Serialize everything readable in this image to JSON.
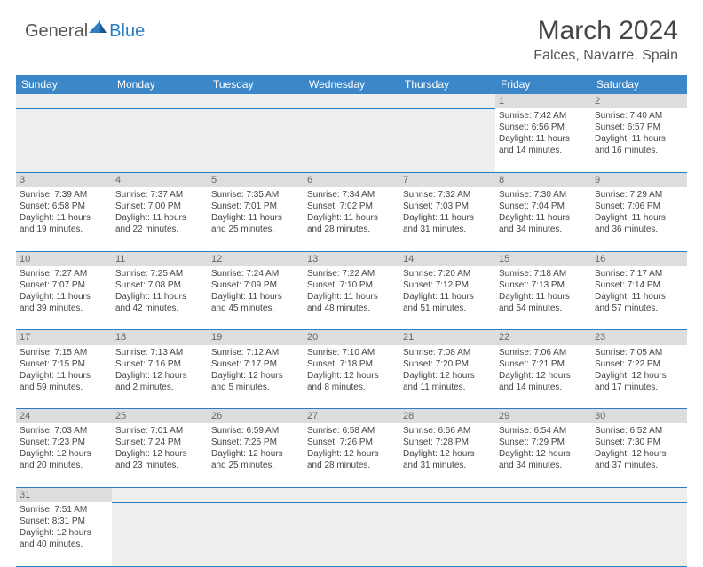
{
  "logo": {
    "text1": "General",
    "text2": "Blue"
  },
  "title": "March 2024",
  "location": "Falces, Navarre, Spain",
  "colors": {
    "header_bg": "#3b87c8",
    "header_text": "#ffffff",
    "daynum_bg": "#dddddd",
    "blank_bg": "#eeeeee",
    "border": "#2b7dc4",
    "text": "#444444"
  },
  "weekdays": [
    "Sunday",
    "Monday",
    "Tuesday",
    "Wednesday",
    "Thursday",
    "Friday",
    "Saturday"
  ],
  "weeks": [
    [
      null,
      null,
      null,
      null,
      null,
      {
        "n": "1",
        "sr": "7:42 AM",
        "ss": "6:56 PM",
        "dl1": "11 hours",
        "dl2": "and 14 minutes."
      },
      {
        "n": "2",
        "sr": "7:40 AM",
        "ss": "6:57 PM",
        "dl1": "11 hours",
        "dl2": "and 16 minutes."
      }
    ],
    [
      {
        "n": "3",
        "sr": "7:39 AM",
        "ss": "6:58 PM",
        "dl1": "11 hours",
        "dl2": "and 19 minutes."
      },
      {
        "n": "4",
        "sr": "7:37 AM",
        "ss": "7:00 PM",
        "dl1": "11 hours",
        "dl2": "and 22 minutes."
      },
      {
        "n": "5",
        "sr": "7:35 AM",
        "ss": "7:01 PM",
        "dl1": "11 hours",
        "dl2": "and 25 minutes."
      },
      {
        "n": "6",
        "sr": "7:34 AM",
        "ss": "7:02 PM",
        "dl1": "11 hours",
        "dl2": "and 28 minutes."
      },
      {
        "n": "7",
        "sr": "7:32 AM",
        "ss": "7:03 PM",
        "dl1": "11 hours",
        "dl2": "and 31 minutes."
      },
      {
        "n": "8",
        "sr": "7:30 AM",
        "ss": "7:04 PM",
        "dl1": "11 hours",
        "dl2": "and 34 minutes."
      },
      {
        "n": "9",
        "sr": "7:29 AM",
        "ss": "7:06 PM",
        "dl1": "11 hours",
        "dl2": "and 36 minutes."
      }
    ],
    [
      {
        "n": "10",
        "sr": "7:27 AM",
        "ss": "7:07 PM",
        "dl1": "11 hours",
        "dl2": "and 39 minutes."
      },
      {
        "n": "11",
        "sr": "7:25 AM",
        "ss": "7:08 PM",
        "dl1": "11 hours",
        "dl2": "and 42 minutes."
      },
      {
        "n": "12",
        "sr": "7:24 AM",
        "ss": "7:09 PM",
        "dl1": "11 hours",
        "dl2": "and 45 minutes."
      },
      {
        "n": "13",
        "sr": "7:22 AM",
        "ss": "7:10 PM",
        "dl1": "11 hours",
        "dl2": "and 48 minutes."
      },
      {
        "n": "14",
        "sr": "7:20 AM",
        "ss": "7:12 PM",
        "dl1": "11 hours",
        "dl2": "and 51 minutes."
      },
      {
        "n": "15",
        "sr": "7:18 AM",
        "ss": "7:13 PM",
        "dl1": "11 hours",
        "dl2": "and 54 minutes."
      },
      {
        "n": "16",
        "sr": "7:17 AM",
        "ss": "7:14 PM",
        "dl1": "11 hours",
        "dl2": "and 57 minutes."
      }
    ],
    [
      {
        "n": "17",
        "sr": "7:15 AM",
        "ss": "7:15 PM",
        "dl1": "11 hours",
        "dl2": "and 59 minutes."
      },
      {
        "n": "18",
        "sr": "7:13 AM",
        "ss": "7:16 PM",
        "dl1": "12 hours",
        "dl2": "and 2 minutes."
      },
      {
        "n": "19",
        "sr": "7:12 AM",
        "ss": "7:17 PM",
        "dl1": "12 hours",
        "dl2": "and 5 minutes."
      },
      {
        "n": "20",
        "sr": "7:10 AM",
        "ss": "7:18 PM",
        "dl1": "12 hours",
        "dl2": "and 8 minutes."
      },
      {
        "n": "21",
        "sr": "7:08 AM",
        "ss": "7:20 PM",
        "dl1": "12 hours",
        "dl2": "and 11 minutes."
      },
      {
        "n": "22",
        "sr": "7:06 AM",
        "ss": "7:21 PM",
        "dl1": "12 hours",
        "dl2": "and 14 minutes."
      },
      {
        "n": "23",
        "sr": "7:05 AM",
        "ss": "7:22 PM",
        "dl1": "12 hours",
        "dl2": "and 17 minutes."
      }
    ],
    [
      {
        "n": "24",
        "sr": "7:03 AM",
        "ss": "7:23 PM",
        "dl1": "12 hours",
        "dl2": "and 20 minutes."
      },
      {
        "n": "25",
        "sr": "7:01 AM",
        "ss": "7:24 PM",
        "dl1": "12 hours",
        "dl2": "and 23 minutes."
      },
      {
        "n": "26",
        "sr": "6:59 AM",
        "ss": "7:25 PM",
        "dl1": "12 hours",
        "dl2": "and 25 minutes."
      },
      {
        "n": "27",
        "sr": "6:58 AM",
        "ss": "7:26 PM",
        "dl1": "12 hours",
        "dl2": "and 28 minutes."
      },
      {
        "n": "28",
        "sr": "6:56 AM",
        "ss": "7:28 PM",
        "dl1": "12 hours",
        "dl2": "and 31 minutes."
      },
      {
        "n": "29",
        "sr": "6:54 AM",
        "ss": "7:29 PM",
        "dl1": "12 hours",
        "dl2": "and 34 minutes."
      },
      {
        "n": "30",
        "sr": "6:52 AM",
        "ss": "7:30 PM",
        "dl1": "12 hours",
        "dl2": "and 37 minutes."
      }
    ],
    [
      {
        "n": "31",
        "sr": "7:51 AM",
        "ss": "8:31 PM",
        "dl1": "12 hours",
        "dl2": "and 40 minutes."
      },
      null,
      null,
      null,
      null,
      null,
      null
    ]
  ]
}
